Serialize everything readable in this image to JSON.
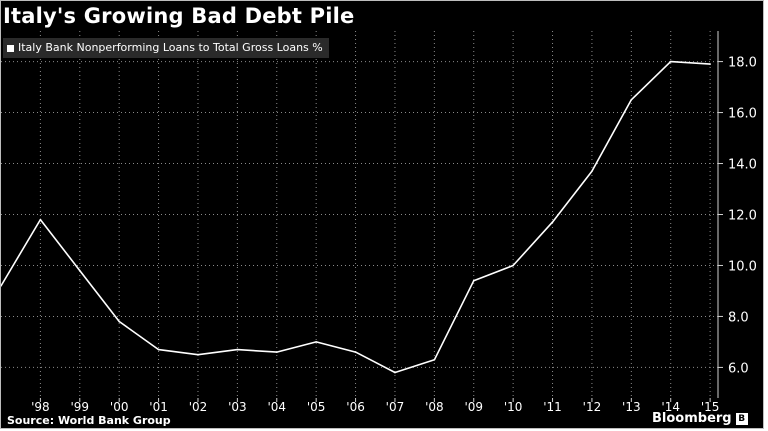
{
  "chart_data": {
    "type": "line",
    "title": "Italy's Growing Bad Debt Pile",
    "xlabel": "",
    "ylabel": "",
    "series": [
      {
        "name": "Italy Bank Nonperforming Loans to Total Gross Loans %",
        "x": [
          1997,
          1998,
          1999,
          2000,
          2001,
          2002,
          2003,
          2004,
          2005,
          2006,
          2007,
          2008,
          2009,
          2010,
          2011,
          2012,
          2013,
          2014,
          2015
        ],
        "values": [
          9.2,
          11.8,
          9.8,
          7.8,
          6.7,
          6.5,
          6.7,
          6.6,
          7.0,
          6.6,
          5.8,
          6.3,
          9.4,
          10.0,
          11.7,
          13.7,
          16.5,
          18.0,
          17.9
        ]
      }
    ],
    "x_tick_labels": [
      "'98",
      "'99",
      "'00",
      "'01",
      "'02",
      "'03",
      "'04",
      "'05",
      "'06",
      "'07",
      "'08",
      "'09",
      "'10",
      "'11",
      "'12",
      "'13",
      "'14",
      "'15"
    ],
    "x_tick_years": [
      1998,
      1999,
      2000,
      2001,
      2002,
      2003,
      2004,
      2005,
      2006,
      2007,
      2008,
      2009,
      2010,
      2011,
      2012,
      2013,
      2014,
      2015
    ],
    "y_ticks": [
      6.0,
      8.0,
      10.0,
      12.0,
      14.0,
      16.0,
      18.0
    ],
    "y_tick_labels": [
      "6.0",
      "8.0",
      "10.0",
      "12.0",
      "14.0",
      "16.0",
      "18.0"
    ],
    "ylim": [
      4.8,
      19.2
    ],
    "xlim": [
      1997,
      2015.2
    ],
    "grid": true,
    "legend_position": "top-left",
    "colors": {
      "background": "#000000",
      "line": "#ffffff",
      "grid": "#8a8a8a",
      "text": "#ffffff",
      "legend_bg": "#2a2a2a"
    }
  },
  "footer": {
    "source": "Source: World Bank Group",
    "brand": "Bloomberg",
    "brand_badge": "B"
  }
}
